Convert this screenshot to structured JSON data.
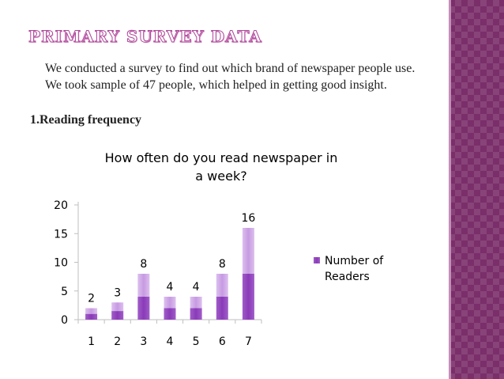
{
  "slide": {
    "title": "PRIMARY SURVEY DATA",
    "intro": "We conducted a survey to find out which brand of newspaper people use. We took sample of 47 people, which helped in getting good insight.",
    "subheading": "1.Reading frequency"
  },
  "colors": {
    "accent": "#7a2e6a",
    "bar_dark": "#8a3bb8",
    "bar_light": "#d7b3ea"
  },
  "chart_data": {
    "type": "bar",
    "title": "How often do you read newspaper in a week?",
    "title_lines": [
      "How often do you read newspaper in",
      "a week?"
    ],
    "categories": [
      "1",
      "2",
      "3",
      "4",
      "5",
      "6",
      "7"
    ],
    "series": [
      {
        "name": "Number of Readers",
        "legend_lines": [
          "Number of",
          "Readers"
        ],
        "values": [
          2,
          3,
          8,
          4,
          4,
          8,
          16
        ]
      }
    ],
    "yticks": [
      "0",
      "5",
      "10",
      "15",
      "20"
    ],
    "ylim": [
      0,
      20
    ],
    "grid": false,
    "legend_position": "right",
    "data_labels": true
  }
}
